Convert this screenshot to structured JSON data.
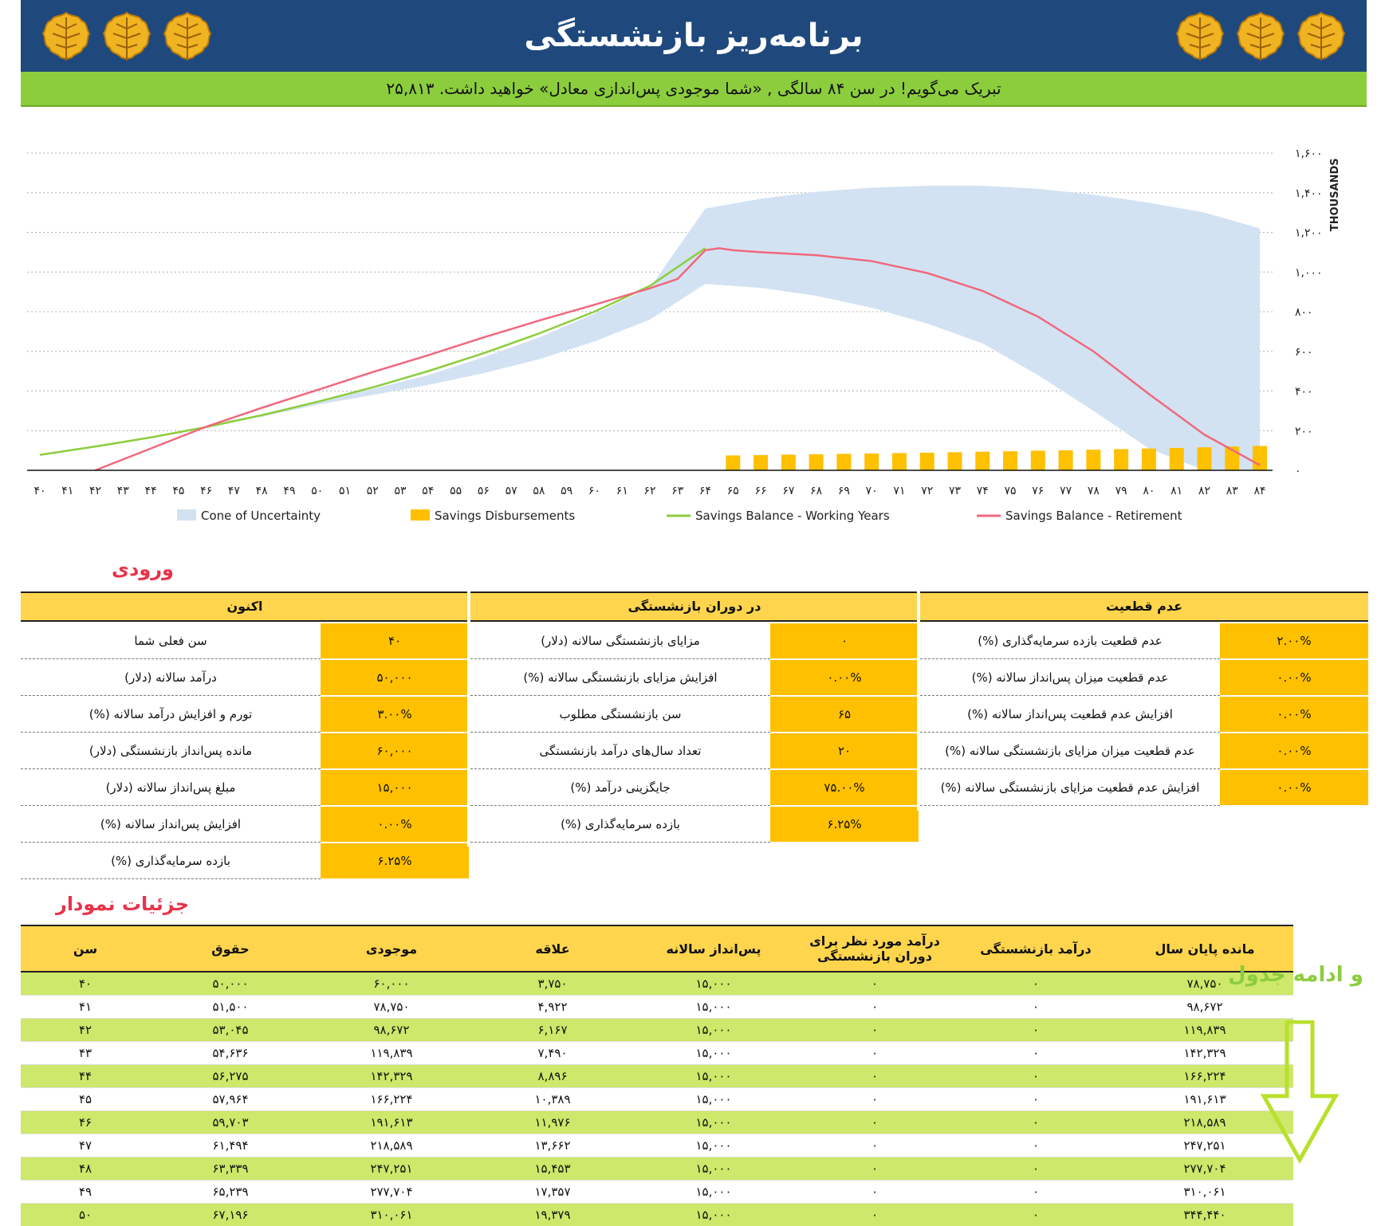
{
  "header": {
    "title": "برنامه‌ریز بازنشستگی",
    "banner": "تبریک می‌گویم!   در سن  ۸۴ سالگی ,  «شما موجودی پس‌اندازی معادل» خواهید داشت.  ۲۵,۸۱۳"
  },
  "colors": {
    "header_bg": "#1f497d",
    "banner_bg": "#8ccd3e",
    "table_header": "#ffd54d",
    "input_cell": "#ffc000",
    "row_green": "#cde86a",
    "cone": "#d3e2f2",
    "bars": "#ffc000",
    "working_line": "#8ccd3e",
    "retirement_line": "#f0687e",
    "section_title": "#e8334a"
  },
  "chart_data": {
    "type": "area",
    "x": [
      40,
      41,
      42,
      43,
      44,
      45,
      46,
      47,
      48,
      49,
      50,
      51,
      52,
      53,
      54,
      55,
      56,
      57,
      58,
      59,
      60,
      61,
      62,
      63,
      64,
      65,
      66,
      67,
      68,
      69,
      70,
      71,
      72,
      73,
      74,
      75,
      76,
      77,
      78,
      79,
      80,
      81,
      82,
      83,
      84
    ],
    "x_tick_labels": [
      "۴۰",
      "۴۱",
      "۴۲",
      "۴۳",
      "۴۴",
      "۴۵",
      "۴۶",
      "۴۷",
      "۴۸",
      "۴۹",
      "۵۰",
      "۵۱",
      "۵۲",
      "۵۳",
      "۵۴",
      "۵۵",
      "۵۶",
      "۵۷",
      "۵۸",
      "۵۹",
      "۶۰",
      "۶۱",
      "۶۲",
      "۶۳",
      "۶۴",
      "۶۵",
      "۶۶",
      "۶۷",
      "۶۸",
      "۶۹",
      "۷۰",
      "۷۱",
      "۷۲",
      "۷۳",
      "۷۴",
      "۷۵",
      "۷۶",
      "۷۷",
      "۷۸",
      "۷۹",
      "۸۰",
      "۸۱",
      "۸۲",
      "۸۳",
      "۸۴"
    ],
    "y_tick_labels": [
      "۰",
      "۲۰۰",
      "۴۰۰",
      "۶۰۰",
      "۸۰۰",
      "۱,۰۰۰",
      "۱,۲۰۰",
      "۱,۴۰۰",
      "۱,۶۰۰"
    ],
    "y_ticks": [
      0,
      200,
      400,
      600,
      800,
      1000,
      1200,
      1400,
      1600
    ],
    "ylim": [
      0,
      1600
    ],
    "ylabel": "THOUSANDS",
    "grid": true,
    "legend_position": "bottom",
    "series": [
      {
        "name": "Cone of Uncertainty",
        "kind": "band",
        "x": [
          40,
          46,
          48,
          50,
          52,
          54,
          56,
          58,
          60,
          62,
          64,
          66,
          68,
          70,
          72,
          74,
          76,
          78,
          80,
          82,
          84
        ],
        "lower": [
          78,
          232,
          270,
          330,
          380,
          430,
          490,
          560,
          650,
          760,
          940,
          920,
          880,
          820,
          740,
          640,
          480,
          300,
          110,
          0,
          0
        ],
        "upper": [
          78,
          232,
          280,
          350,
          410,
          480,
          570,
          670,
          790,
          920,
          1320,
          1370,
          1405,
          1425,
          1435,
          1435,
          1420,
          1390,
          1350,
          1300,
          1220
        ]
      },
      {
        "name": "Savings Disbursements",
        "kind": "bar",
        "x": [
          65,
          66,
          67,
          68,
          69,
          70,
          71,
          72,
          73,
          74,
          75,
          76,
          77,
          78,
          79,
          80,
          81,
          82,
          83,
          84
        ],
        "values": [
          75,
          77,
          79,
          81,
          83,
          85,
          87,
          89,
          91,
          94,
          96,
          99,
          101,
          104,
          107,
          110,
          113,
          116,
          120,
          123
        ]
      },
      {
        "name": "Savings Balance - Working Years",
        "kind": "line",
        "x": [
          40,
          42,
          44,
          46,
          48,
          50,
          52,
          54,
          56,
          58,
          60,
          62,
          64
        ],
        "values": [
          78,
          120,
          166,
          218,
          278,
          345,
          418,
          500,
          590,
          690,
          800,
          930,
          1120
        ]
      },
      {
        "name": "Savings Balance - Retirement",
        "kind": "line",
        "x": [
          42,
          44,
          46,
          48,
          50,
          52,
          54,
          56,
          58,
          60,
          62,
          63,
          64,
          64.5,
          65,
          66,
          68,
          70,
          72,
          74,
          76,
          78,
          80,
          82,
          84
        ],
        "values": [
          0,
          110,
          220,
          315,
          405,
          495,
          580,
          670,
          755,
          835,
          918,
          965,
          1110,
          1120,
          1110,
          1100,
          1085,
          1055,
          995,
          905,
          775,
          600,
          385,
          180,
          26
        ]
      }
    ]
  },
  "inputs": {
    "title": "ورودی",
    "col_now": {
      "header": "اکنون",
      "rows": [
        {
          "label": "سن فعلی شما",
          "value": "۴۰"
        },
        {
          "label": "درآمد سالانه (دلار)",
          "value": "۵۰,۰۰۰"
        },
        {
          "label": "تورم و افزایش درآمد سالانه (%)",
          "value": "۳.۰۰%"
        },
        {
          "label": "مانده پس‌انداز بازنشستگی (دلار)",
          "value": "۶۰,۰۰۰"
        },
        {
          "label": "مبلغ پس‌انداز سالانه (دلار)",
          "value": "۱۵,۰۰۰"
        },
        {
          "label": "افزایش پس‌انداز سالانه (%)",
          "value": "۰.۰۰%"
        },
        {
          "label": "بازده سرمایه‌گذاری (%)",
          "value": "۶.۲۵%"
        }
      ]
    },
    "col_retire": {
      "header": "در دوران بازنشستگی",
      "rows": [
        {
          "label": "مزایای بازنشستگی سالانه (دلار)",
          "value": "۰"
        },
        {
          "label": "افزایش مزایای بازنشستگی سالانه (%)",
          "value": "۰.۰۰%"
        },
        {
          "label": "سن بازنشستگی مطلوب",
          "value": "۶۵"
        },
        {
          "label": "تعداد سال‌های درآمد بازنشستگی",
          "value": "۲۰"
        },
        {
          "label": "جایگزینی درآمد (%)",
          "value": "۷۵.۰۰%"
        },
        {
          "label": "بازده سرمایه‌گذاری (%)",
          "value": "۶.۲۵%"
        }
      ]
    },
    "col_uncert": {
      "header": "عدم قطعیت",
      "rows": [
        {
          "label": "عدم قطعیت بازده سرمایه‌گذاری (%)",
          "value": "۲.۰۰%"
        },
        {
          "label": "عدم قطعیت میزان پس‌انداز سالانه (%)",
          "value": "۰.۰۰%"
        },
        {
          "label": "افزایش عدم قطعیت پس‌انداز سالانه (%)",
          "value": "۰.۰۰%"
        },
        {
          "label": "عدم قطعیت میزان مزایای بازنشستگی سالانه (%)",
          "value": "۰.۰۰%"
        },
        {
          "label": "افزایش عدم قطعیت مزایای بازنشستگی سالانه (%)",
          "value": "۰.۰۰%"
        }
      ]
    }
  },
  "details": {
    "title": "جزئیات نمودار",
    "continue_label": "و ادامه جدول",
    "columns": [
      "سن",
      "حقوق",
      "موجودی",
      "علاقه",
      "پس‌انداز سالانه",
      "درآمد مورد نظر برای دوران بازنشستگی",
      "درآمد بازنشستگی",
      "مانده پایان سال"
    ],
    "rows": [
      [
        "۴۰",
        "۵۰,۰۰۰",
        "۶۰,۰۰۰",
        "۳,۷۵۰",
        "۱۵,۰۰۰",
        "۰",
        "۰",
        "۷۸,۷۵۰"
      ],
      [
        "۴۱",
        "۵۱,۵۰۰",
        "۷۸,۷۵۰",
        "۴,۹۲۲",
        "۱۵,۰۰۰",
        "۰",
        "۰",
        "۹۸,۶۷۲"
      ],
      [
        "۴۲",
        "۵۳,۰۴۵",
        "۹۸,۶۷۲",
        "۶,۱۶۷",
        "۱۵,۰۰۰",
        "۰",
        "۰",
        "۱۱۹,۸۳۹"
      ],
      [
        "۴۳",
        "۵۴,۶۳۶",
        "۱۱۹,۸۳۹",
        "۷,۴۹۰",
        "۱۵,۰۰۰",
        "۰",
        "۰",
        "۱۴۲,۳۲۹"
      ],
      [
        "۴۴",
        "۵۶,۲۷۵",
        "۱۴۲,۳۲۹",
        "۸,۸۹۶",
        "۱۵,۰۰۰",
        "۰",
        "۰",
        "۱۶۶,۲۲۴"
      ],
      [
        "۴۵",
        "۵۷,۹۶۴",
        "۱۶۶,۲۲۴",
        "۱۰,۳۸۹",
        "۱۵,۰۰۰",
        "۰",
        "۰",
        "۱۹۱,۶۱۳"
      ],
      [
        "۴۶",
        "۵۹,۷۰۳",
        "۱۹۱,۶۱۳",
        "۱۱,۹۷۶",
        "۱۵,۰۰۰",
        "۰",
        "۰",
        "۲۱۸,۵۸۹"
      ],
      [
        "۴۷",
        "۶۱,۴۹۴",
        "۲۱۸,۵۸۹",
        "۱۳,۶۶۲",
        "۱۵,۰۰۰",
        "۰",
        "۰",
        "۲۴۷,۲۵۱"
      ],
      [
        "۴۸",
        "۶۳,۳۳۹",
        "۲۴۷,۲۵۱",
        "۱۵,۴۵۳",
        "۱۵,۰۰۰",
        "۰",
        "۰",
        "۲۷۷,۷۰۴"
      ],
      [
        "۴۹",
        "۶۵,۲۳۹",
        "۲۷۷,۷۰۴",
        "۱۷,۳۵۷",
        "۱۵,۰۰۰",
        "۰",
        "۰",
        "۳۱۰,۰۶۱"
      ],
      [
        "۵۰",
        "۶۷,۱۹۶",
        "۳۱۰,۰۶۱",
        "۱۹,۳۷۹",
        "۱۵,۰۰۰",
        "۰",
        "۰",
        "۳۴۴,۴۴۰"
      ]
    ]
  }
}
